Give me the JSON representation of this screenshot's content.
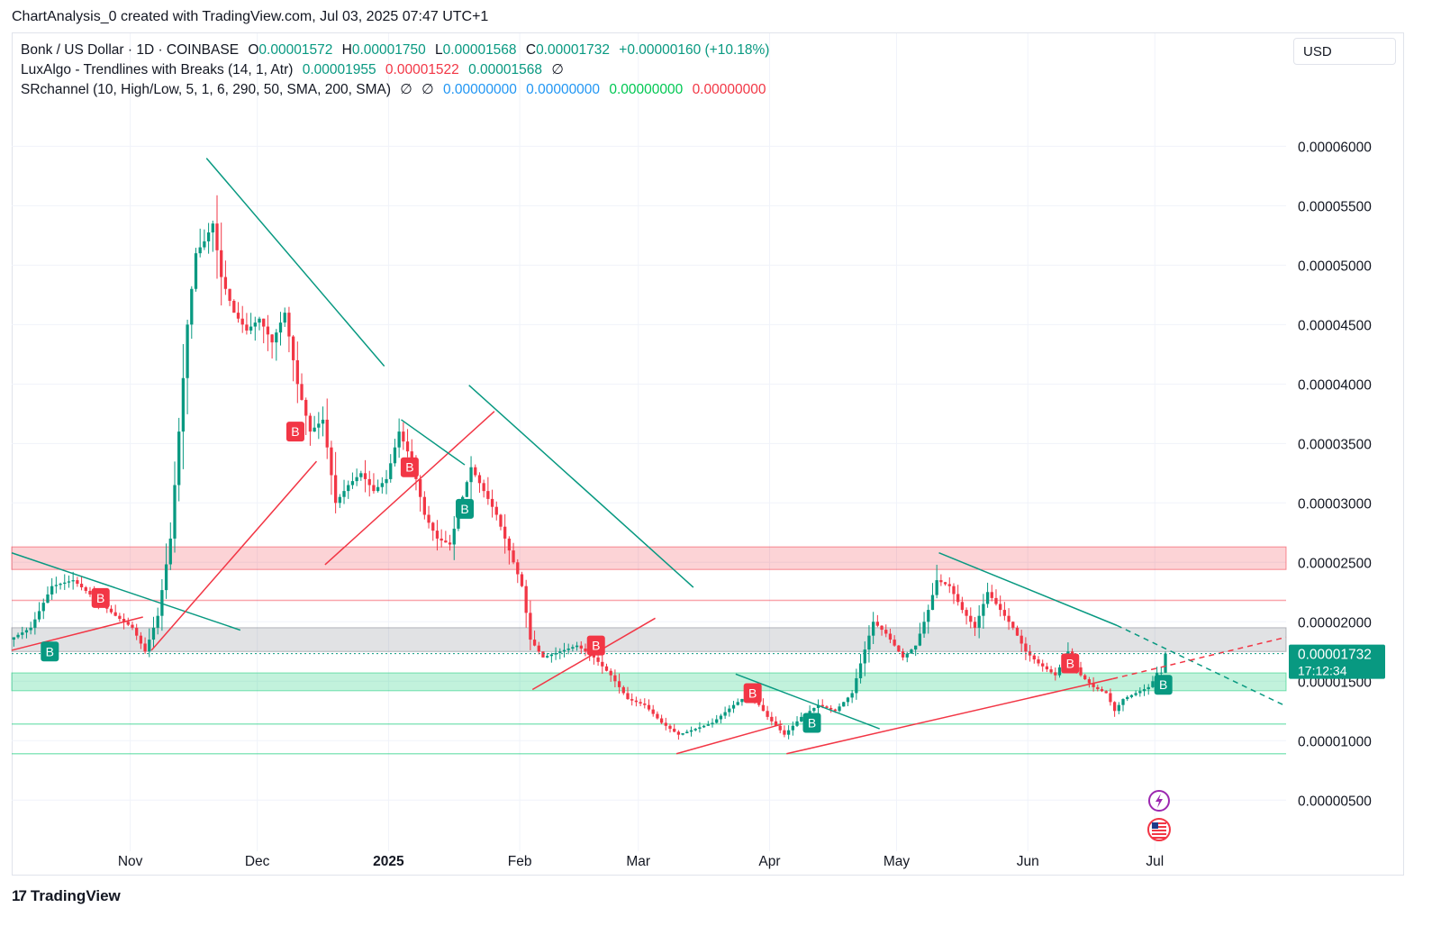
{
  "header": {
    "text": "ChartAnalysis_0 created with TradingView.com, Jul 03, 2025 07:47 UTC+1"
  },
  "legend": {
    "row1": {
      "symbol": "Bonk / US Dollar · 1D · COINBASE",
      "open_label": "O",
      "open": "0.00001572",
      "high_label": "H",
      "high": "0.00001750",
      "low_label": "L",
      "low": "0.00001568",
      "close_label": "C",
      "close": "0.00001732",
      "change": "+0.00000160 (+10.18%)"
    },
    "row2": {
      "name": "LuxAlgo - Trendlines with Breaks (14, 1, Atr)",
      "v1": "0.00001955",
      "v2": "0.00001522",
      "v3": "0.00001568",
      "icon": "∅"
    },
    "row3": {
      "name": "SRchannel (10, High/Low, 5, 1, 6, 290, 50, SMA, 200, SMA)",
      "icon1": "∅",
      "icon2": "∅",
      "v1": "0.00000000",
      "v2": "0.00000000",
      "v3": "0.00000000",
      "v4": "0.00000000"
    }
  },
  "currency": "USD",
  "footer": {
    "logo": "17",
    "brand": "TradingView"
  },
  "colors": {
    "up": "#089981",
    "down": "#f23645",
    "grid": "#f0f3fa",
    "trend_green": "#089981",
    "trend_red": "#f23645",
    "zone_red": "rgba(242,54,69,0.22)",
    "zone_gray": "rgba(120,123,134,0.22)",
    "zone_green": "rgba(0,200,110,0.24)"
  },
  "chart_data": {
    "type": "candlestick",
    "title": "Bonk / US Dollar · 1D · COINBASE",
    "y_ticks": [
      "0.00006000",
      "0.00005500",
      "0.00005000",
      "0.00004500",
      "0.00004000",
      "0.00003500",
      "0.00003000",
      "0.00002500",
      "0.00002000",
      "0.00001500",
      "0.00001000",
      "0.00000500"
    ],
    "y_tick_values": [
      6.0,
      5.5,
      5.0,
      4.5,
      4.0,
      3.5,
      3.0,
      2.5,
      2.0,
      1.5,
      1.0,
      0.5
    ],
    "y_unit_scale": "values in units of 1e-5 USD",
    "ylim": [
      0.07,
      6.95
    ],
    "x_ticks": [
      {
        "label": "Nov",
        "day": "2024-11-01",
        "bold": false
      },
      {
        "label": "Dec",
        "day": "2024-12-01",
        "bold": false
      },
      {
        "label": "2025",
        "day": "2025-01-01",
        "bold": true
      },
      {
        "label": "Feb",
        "day": "2025-02-01",
        "bold": false
      },
      {
        "label": "Mar",
        "day": "2025-03-01",
        "bold": false
      },
      {
        "label": "Apr",
        "day": "2025-04-01",
        "bold": false
      },
      {
        "label": "May",
        "day": "2025-05-01",
        "bold": false
      },
      {
        "label": "Jun",
        "day": "2025-06-01",
        "bold": false
      },
      {
        "label": "Jul",
        "day": "2025-07-01",
        "bold": false
      }
    ],
    "xlim": [
      "2024-10-04",
      "2025-08-01"
    ],
    "price_points": [
      {
        "date": "2024-10-04",
        "price": 1.85
      },
      {
        "date": "2024-10-09",
        "price": 1.95
      },
      {
        "date": "2024-10-14",
        "price": 2.3
      },
      {
        "date": "2024-10-19",
        "price": 2.35
      },
      {
        "date": "2024-10-24",
        "price": 2.2
      },
      {
        "date": "2024-10-29",
        "price": 2.05
      },
      {
        "date": "2024-11-02",
        "price": 1.95
      },
      {
        "date": "2024-11-05",
        "price": 1.75
      },
      {
        "date": "2024-11-08",
        "price": 2.05
      },
      {
        "date": "2024-11-11",
        "price": 2.7
      },
      {
        "date": "2024-11-13",
        "price": 3.6
      },
      {
        "date": "2024-11-15",
        "price": 4.5
      },
      {
        "date": "2024-11-17",
        "price": 5.1
      },
      {
        "date": "2024-11-19",
        "price": 5.2
      },
      {
        "date": "2024-11-21",
        "price": 5.35
      },
      {
        "date": "2024-11-23",
        "price": 4.9
      },
      {
        "date": "2024-11-26",
        "price": 4.6
      },
      {
        "date": "2024-11-29",
        "price": 4.45
      },
      {
        "date": "2024-12-02",
        "price": 4.55
      },
      {
        "date": "2024-12-05",
        "price": 4.35
      },
      {
        "date": "2024-12-08",
        "price": 4.6
      },
      {
        "date": "2024-12-11",
        "price": 4.0
      },
      {
        "date": "2024-12-14",
        "price": 3.6
      },
      {
        "date": "2024-12-17",
        "price": 3.7
      },
      {
        "date": "2024-12-20",
        "price": 3.0
      },
      {
        "date": "2024-12-23",
        "price": 3.15
      },
      {
        "date": "2024-12-26",
        "price": 3.25
      },
      {
        "date": "2024-12-29",
        "price": 3.1
      },
      {
        "date": "2025-01-01",
        "price": 3.2
      },
      {
        "date": "2025-01-04",
        "price": 3.6
      },
      {
        "date": "2025-01-07",
        "price": 3.35
      },
      {
        "date": "2025-01-10",
        "price": 2.9
      },
      {
        "date": "2025-01-13",
        "price": 2.7
      },
      {
        "date": "2025-01-16",
        "price": 2.65
      },
      {
        "date": "2025-01-19",
        "price": 3.05
      },
      {
        "date": "2025-01-21",
        "price": 3.3
      },
      {
        "date": "2025-01-24",
        "price": 3.1
      },
      {
        "date": "2025-01-27",
        "price": 2.9
      },
      {
        "date": "2025-01-30",
        "price": 2.6
      },
      {
        "date": "2025-02-02",
        "price": 2.3
      },
      {
        "date": "2025-02-04",
        "price": 1.85
      },
      {
        "date": "2025-02-07",
        "price": 1.7
      },
      {
        "date": "2025-02-11",
        "price": 1.75
      },
      {
        "date": "2025-02-15",
        "price": 1.8
      },
      {
        "date": "2025-02-19",
        "price": 1.7
      },
      {
        "date": "2025-02-23",
        "price": 1.55
      },
      {
        "date": "2025-02-27",
        "price": 1.35
      },
      {
        "date": "2025-03-03",
        "price": 1.3
      },
      {
        "date": "2025-03-07",
        "price": 1.15
      },
      {
        "date": "2025-03-11",
        "price": 1.05
      },
      {
        "date": "2025-03-15",
        "price": 1.1
      },
      {
        "date": "2025-03-19",
        "price": 1.15
      },
      {
        "date": "2025-03-24",
        "price": 1.3
      },
      {
        "date": "2025-03-28",
        "price": 1.4
      },
      {
        "date": "2025-04-01",
        "price": 1.2
      },
      {
        "date": "2025-04-05",
        "price": 1.05
      },
      {
        "date": "2025-04-09",
        "price": 1.2
      },
      {
        "date": "2025-04-13",
        "price": 1.3
      },
      {
        "date": "2025-04-17",
        "price": 1.25
      },
      {
        "date": "2025-04-21",
        "price": 1.4
      },
      {
        "date": "2025-04-23",
        "price": 1.65
      },
      {
        "date": "2025-04-26",
        "price": 2.0
      },
      {
        "date": "2025-04-29",
        "price": 1.9
      },
      {
        "date": "2025-05-03",
        "price": 1.7
      },
      {
        "date": "2025-05-06",
        "price": 1.8
      },
      {
        "date": "2025-05-09",
        "price": 2.1
      },
      {
        "date": "2025-05-11",
        "price": 2.35
      },
      {
        "date": "2025-05-14",
        "price": 2.3
      },
      {
        "date": "2025-05-17",
        "price": 2.1
      },
      {
        "date": "2025-05-20",
        "price": 1.95
      },
      {
        "date": "2025-05-23",
        "price": 2.25
      },
      {
        "date": "2025-05-26",
        "price": 2.1
      },
      {
        "date": "2025-05-29",
        "price": 1.95
      },
      {
        "date": "2025-06-01",
        "price": 1.75
      },
      {
        "date": "2025-06-04",
        "price": 1.65
      },
      {
        "date": "2025-06-08",
        "price": 1.55
      },
      {
        "date": "2025-06-11",
        "price": 1.75
      },
      {
        "date": "2025-06-14",
        "price": 1.55
      },
      {
        "date": "2025-06-17",
        "price": 1.45
      },
      {
        "date": "2025-06-20",
        "price": 1.4
      },
      {
        "date": "2025-06-22",
        "price": 1.25
      },
      {
        "date": "2025-06-24",
        "price": 1.35
      },
      {
        "date": "2025-06-27",
        "price": 1.4
      },
      {
        "date": "2025-06-30",
        "price": 1.45
      },
      {
        "date": "2025-07-01",
        "price": 1.5
      },
      {
        "date": "2025-07-02",
        "price": 1.572
      }
    ],
    "last_candle": {
      "date": "2025-07-03",
      "open": 1.572,
      "high": 1.75,
      "low": 1.568,
      "close": 1.732
    },
    "last_price_label": "0.00001732",
    "countdown_label": "17:12:34",
    "zones": [
      {
        "name": "resistance-zone",
        "from": 2.44,
        "to": 2.63,
        "color": "red"
      },
      {
        "name": "mid-zone",
        "from": 1.75,
        "to": 1.95,
        "color": "gray"
      },
      {
        "name": "support-zone",
        "from": 1.42,
        "to": 1.57,
        "color": "green"
      }
    ],
    "levels": [
      {
        "value": 2.18,
        "color": "red"
      },
      {
        "value": 1.14,
        "color": "green"
      },
      {
        "value": 0.89,
        "color": "green"
      }
    ],
    "trendlines": [
      {
        "color": "green",
        "from": [
          "2024-10-04",
          2.58
        ],
        "to": [
          "2024-11-27",
          1.93
        ]
      },
      {
        "color": "red",
        "from": [
          "2024-10-04",
          1.76
        ],
        "to": [
          "2024-11-04",
          2.04
        ]
      },
      {
        "color": "red",
        "from": [
          "2024-11-06",
          1.76
        ],
        "to": [
          "2024-12-15",
          3.35
        ]
      },
      {
        "color": "green",
        "from": [
          "2024-11-19",
          5.9
        ],
        "to": [
          "2024-12-31",
          4.15
        ]
      },
      {
        "color": "red",
        "from": [
          "2024-12-17",
          2.48
        ],
        "to": [
          "2025-01-26",
          3.77
        ]
      },
      {
        "color": "green",
        "from": [
          "2025-01-04",
          3.7
        ],
        "to": [
          "2025-01-19",
          3.32
        ]
      },
      {
        "color": "green",
        "from": [
          "2025-01-20",
          3.99
        ],
        "to": [
          "2025-03-14",
          2.29
        ]
      },
      {
        "color": "red",
        "from": [
          "2025-02-04",
          1.43
        ],
        "to": [
          "2025-03-05",
          2.03
        ]
      },
      {
        "color": "red",
        "from": [
          "2025-03-10",
          0.89
        ],
        "to": [
          "2025-04-04",
          1.14
        ]
      },
      {
        "color": "green",
        "from": [
          "2025-03-24",
          1.56
        ],
        "to": [
          "2025-04-27",
          1.1
        ]
      },
      {
        "color": "red",
        "from": [
          "2025-04-05",
          0.89
        ],
        "to": [
          "2025-06-21",
          1.52
        ]
      },
      {
        "color": "green",
        "from": [
          "2025-05-11",
          2.58
        ],
        "to": [
          "2025-06-22",
          1.97
        ]
      },
      {
        "color": "green",
        "from": [
          "2025-06-22",
          1.97
        ],
        "to": [
          "2025-08-01",
          1.29
        ],
        "dashed": true
      },
      {
        "color": "red",
        "from": [
          "2025-06-21",
          1.52
        ],
        "to": [
          "2025-08-01",
          1.87
        ],
        "dashed": true
      }
    ],
    "break_markers": [
      {
        "date": "2024-10-25",
        "price": 2.2,
        "color": "red",
        "text": "B"
      },
      {
        "date": "2024-10-13",
        "price": 1.75,
        "color": "green",
        "text": "B"
      },
      {
        "date": "2024-12-10",
        "price": 3.6,
        "color": "red",
        "text": "B"
      },
      {
        "date": "2025-01-06",
        "price": 3.3,
        "color": "red",
        "text": "B"
      },
      {
        "date": "2025-01-19",
        "price": 2.95,
        "color": "green",
        "text": "B"
      },
      {
        "date": "2025-02-19",
        "price": 1.8,
        "color": "red",
        "text": "B"
      },
      {
        "date": "2025-03-28",
        "price": 1.4,
        "color": "red",
        "text": "B"
      },
      {
        "date": "2025-04-11",
        "price": 1.15,
        "color": "green",
        "text": "B"
      },
      {
        "date": "2025-06-11",
        "price": 1.65,
        "color": "red",
        "text": "B"
      },
      {
        "date": "2025-07-03",
        "price": 1.47,
        "color": "green",
        "text": "B"
      }
    ],
    "event_icons": [
      {
        "date": "2025-07-02",
        "name": "lightning-icon"
      },
      {
        "date": "2025-07-02",
        "name": "us-flag-icon"
      }
    ]
  }
}
